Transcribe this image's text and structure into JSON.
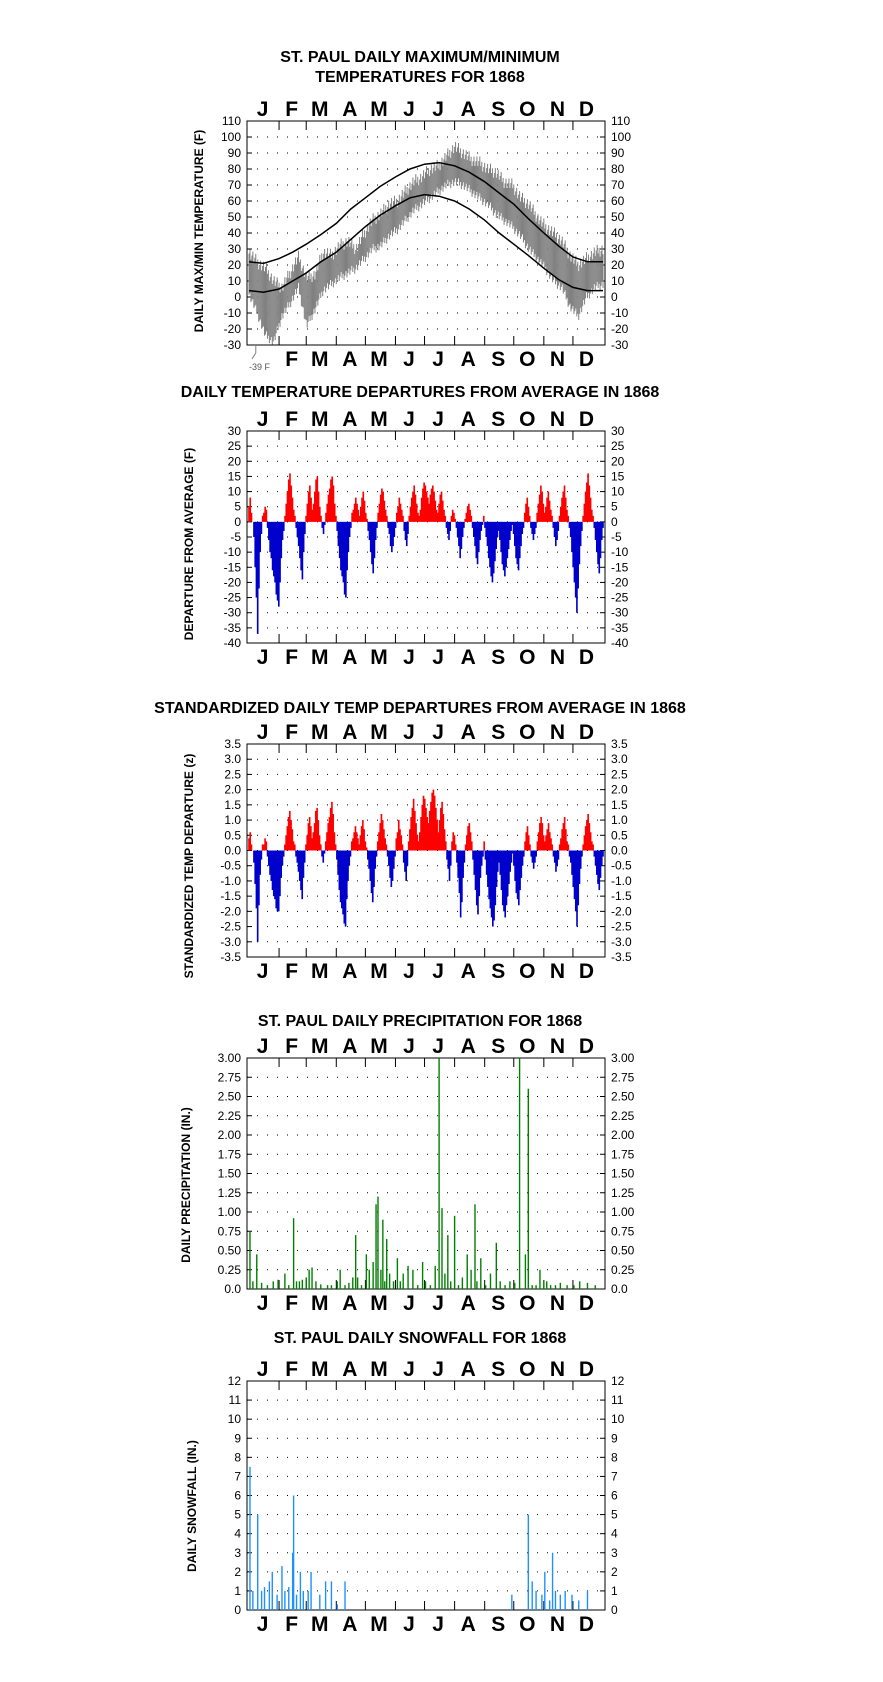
{
  "page": {
    "background": "#ffffff"
  },
  "colors": {
    "temp_series": "#808080",
    "normal_lines": "#000000",
    "positive": "#ff0000",
    "negative": "#0000cc",
    "precip": "#008000",
    "snow": "#1e90ff",
    "grid_dots": "#000000"
  },
  "chart_data": [
    {
      "id": "temps",
      "type": "line",
      "title": [
        "ST. PAUL DAILY MAXIMUM/MINIMUM",
        "TEMPERATURES FOR 1868"
      ],
      "ylabel": "DAILY MAX/MIN TEMPERATURE (F)",
      "months_top": [
        "J",
        "F",
        "M",
        "A",
        "M",
        "J",
        "J",
        "A",
        "S",
        "O",
        "N",
        "D"
      ],
      "months_bottom": [
        "",
        "F",
        "M",
        "A",
        "M",
        "J",
        "J",
        "A",
        "S",
        "O",
        "N",
        "D"
      ],
      "ylim": [
        -30,
        110
      ],
      "yticks": [
        110,
        100,
        90,
        80,
        70,
        60,
        50,
        40,
        30,
        20,
        10,
        0,
        -10,
        -20,
        -30
      ],
      "annotation": "-39 F",
      "annotation_value": -39,
      "x_day_points": [
        1,
        16,
        32,
        46,
        60,
        75,
        91,
        106,
        121,
        136,
        152,
        167,
        182,
        197,
        213,
        228,
        244,
        259,
        274,
        289,
        305,
        320,
        335,
        350,
        366
      ],
      "normal_high": [
        22,
        21,
        24,
        28,
        33,
        39,
        46,
        55,
        62,
        69,
        75,
        80,
        83,
        84,
        82,
        78,
        72,
        65,
        58,
        49,
        40,
        32,
        25,
        22,
        22
      ],
      "normal_low": [
        4,
        3,
        5,
        10,
        15,
        22,
        28,
        36,
        44,
        51,
        57,
        62,
        64,
        63,
        60,
        55,
        48,
        40,
        33,
        26,
        18,
        11,
        6,
        4,
        4
      ],
      "daily_high": [
        28,
        22,
        18,
        10,
        6,
        15,
        25,
        12,
        14,
        28,
        26,
        32,
        35,
        30,
        40,
        48,
        52,
        58,
        60,
        66,
        72,
        75,
        80,
        82,
        88,
        94,
        90,
        86,
        84,
        80,
        78,
        72,
        70,
        62,
        58,
        50,
        44,
        40,
        35,
        26,
        20,
        24,
        28,
        30
      ],
      "daily_low": [
        2,
        -10,
        -24,
        -28,
        -12,
        -4,
        6,
        -18,
        -8,
        4,
        8,
        12,
        15,
        18,
        24,
        30,
        32,
        38,
        42,
        48,
        54,
        58,
        62,
        66,
        70,
        72,
        70,
        66,
        62,
        58,
        52,
        48,
        44,
        38,
        30,
        24,
        18,
        10,
        6,
        -6,
        -12,
        0,
        6,
        8
      ]
    },
    {
      "id": "departures",
      "type": "bar",
      "title": "DAILY TEMPERATURE DEPARTURES FROM AVERAGE IN 1868",
      "ylabel": "DEPARTURE FROM AVERAGE (F)",
      "months": [
        "J",
        "F",
        "M",
        "A",
        "M",
        "J",
        "J",
        "A",
        "S",
        "O",
        "N",
        "D"
      ],
      "ylim": [
        -40,
        30
      ],
      "yticks": [
        30,
        25,
        20,
        15,
        10,
        5,
        0,
        -5,
        -10,
        -15,
        -20,
        -25,
        -30,
        -35,
        -40
      ],
      "daily": [
        5,
        8,
        3,
        0,
        -5,
        -15,
        -25,
        -37,
        -22,
        -10,
        -4,
        2,
        3,
        5,
        4,
        -2,
        -6,
        -10,
        -12,
        -16,
        -18,
        -20,
        -24,
        -26,
        -28,
        -20,
        -12,
        -6,
        -3,
        2,
        6,
        10,
        14,
        16,
        12,
        8,
        4,
        2,
        -2,
        -5,
        -8,
        -12,
        -16,
        -19,
        -10,
        -4,
        2,
        6,
        10,
        12,
        8,
        4,
        6,
        10,
        14,
        15,
        10,
        5,
        2,
        -2,
        -4,
        -1,
        3,
        6,
        9,
        11,
        14,
        15,
        12,
        6,
        2,
        -3,
        -8,
        -12,
        -16,
        -18,
        -20,
        -24,
        -25,
        -16,
        -10,
        -5,
        -2,
        3,
        4,
        6,
        8,
        6,
        4,
        2,
        5,
        8,
        10,
        7,
        3,
        1,
        -3,
        -6,
        -10,
        -14,
        -17,
        -12,
        -6,
        -2,
        3,
        6,
        9,
        11,
        10,
        7,
        4,
        2,
        -2,
        -4,
        -8,
        -10,
        -8,
        -5,
        -2,
        3,
        5,
        8,
        6,
        4,
        2,
        -3,
        -6,
        -8,
        -4,
        2,
        5,
        8,
        10,
        12,
        9,
        6,
        3,
        2,
        4,
        8,
        11,
        13,
        12,
        10,
        8,
        6,
        9,
        11,
        12,
        10,
        7,
        4,
        3,
        6,
        9,
        10,
        7,
        4,
        2,
        -2,
        -4,
        -6,
        -3,
        2,
        4,
        3,
        1,
        -2,
        -5,
        -8,
        -12,
        -9,
        -5,
        -2,
        1,
        3,
        5,
        6,
        4,
        2,
        -2,
        -5,
        -8,
        -12,
        -14,
        -10,
        -6,
        -3,
        -1,
        2,
        -2,
        -5,
        -8,
        -12,
        -15,
        -18,
        -20,
        -17,
        -13,
        -9,
        -5,
        -3,
        -6,
        -10,
        -14,
        -16,
        -18,
        -15,
        -12,
        -9,
        -6,
        -3,
        -1,
        -4,
        -8,
        -12,
        -14,
        -16,
        -12,
        -8,
        -4,
        -2,
        3,
        6,
        8,
        5,
        2,
        -2,
        -4,
        -6,
        -4,
        -2,
        3,
        6,
        9,
        12,
        10,
        6,
        3,
        5,
        8,
        10,
        7,
        4,
        2,
        -2,
        -5,
        -8,
        -6,
        -3,
        2,
        5,
        8,
        10,
        12,
        8,
        4,
        2,
        -2,
        -5,
        -10,
        -15,
        -20,
        -25,
        -30,
        -22,
        -14,
        -8,
        -3,
        2,
        6,
        10,
        13,
        16,
        12,
        8,
        4,
        2,
        -2,
        -6,
        -10,
        -14,
        -17,
        -12,
        -6,
        -2
      ]
    },
    {
      "id": "standardized",
      "type": "bar",
      "title": "STANDARDIZED DAILY TEMP DEPARTURES FROM AVERAGE IN 1868",
      "ylabel": "STANDARDIZED TEMP DEPARTURE (z)",
      "months": [
        "J",
        "F",
        "M",
        "A",
        "M",
        "J",
        "J",
        "A",
        "S",
        "O",
        "N",
        "D"
      ],
      "ylim": [
        -3.5,
        3.5
      ],
      "yticks": [
        "3.5",
        "3.0",
        "2.5",
        "2.0",
        "1.5",
        "1.0",
        "0.5",
        "0.0",
        "-0.5",
        "-1.0",
        "-1.5",
        "-2.0",
        "-2.5",
        "-3.0",
        "-3.5"
      ],
      "daily": [
        0.4,
        0.6,
        0.2,
        0,
        -0.4,
        -1.1,
        -1.9,
        -3.0,
        -1.8,
        -0.8,
        -0.3,
        0.2,
        0.2,
        0.4,
        0.3,
        -0.2,
        -0.5,
        -0.8,
        -1.0,
        -1.3,
        -1.5,
        -1.6,
        -1.9,
        -2.0,
        -2.0,
        -1.5,
        -0.9,
        -0.5,
        -0.2,
        0.2,
        0.5,
        0.8,
        1.1,
        1.3,
        1.0,
        0.7,
        0.3,
        0.2,
        -0.2,
        -0.4,
        -0.7,
        -1.0,
        -1.3,
        -1.6,
        -0.9,
        -0.4,
        0.2,
        0.5,
        0.9,
        1.1,
        0.8,
        0.4,
        0.6,
        0.9,
        1.3,
        1.4,
        1.0,
        0.5,
        0.2,
        -0.2,
        -0.4,
        -0.1,
        0.3,
        0.6,
        0.9,
        1.1,
        1.4,
        1.6,
        1.2,
        0.6,
        0.2,
        -0.3,
        -0.8,
        -1.3,
        -1.7,
        -1.9,
        -2.1,
        -2.4,
        -2.5,
        -1.6,
        -1.0,
        -0.5,
        -0.2,
        0.3,
        0.4,
        0.6,
        0.8,
        0.6,
        0.4,
        0.2,
        0.5,
        0.8,
        1.0,
        0.7,
        0.3,
        0.1,
        -0.3,
        -0.6,
        -1.0,
        -1.4,
        -1.7,
        -1.2,
        -0.6,
        -0.2,
        0.3,
        0.6,
        0.9,
        1.2,
        1.0,
        0.7,
        0.4,
        0.2,
        -0.2,
        -0.5,
        -0.9,
        -1.2,
        -1.0,
        -0.6,
        -0.2,
        0.4,
        0.6,
        1.0,
        0.7,
        0.5,
        0.2,
        -0.4,
        -0.7,
        -1.0,
        -0.5,
        0.3,
        0.7,
        1.1,
        1.4,
        1.7,
        1.3,
        0.9,
        0.5,
        0.3,
        0.6,
        1.1,
        1.5,
        1.8,
        1.7,
        1.4,
        1.1,
        0.9,
        1.3,
        1.6,
        1.9,
        2.0,
        1.8,
        1.4,
        1.0,
        0.6,
        1.0,
        1.4,
        1.6,
        1.2,
        0.7,
        0.3,
        -0.3,
        -0.6,
        -1.0,
        -0.5,
        0.3,
        0.6,
        0.5,
        0.2,
        -0.4,
        -0.9,
        -1.4,
        -2.2,
        -1.7,
        -0.9,
        -0.4,
        0.2,
        0.5,
        0.8,
        0.9,
        0.6,
        0.3,
        -0.3,
        -0.8,
        -1.3,
        -1.8,
        -2.1,
        -1.5,
        -0.9,
        -0.5,
        -0.2,
        0.3,
        -0.3,
        -0.8,
        -1.2,
        -1.6,
        -1.9,
        -2.2,
        -2.5,
        -2.3,
        -1.8,
        -1.2,
        -0.7,
        -0.4,
        -0.8,
        -1.3,
        -1.8,
        -2.0,
        -2.2,
        -1.8,
        -1.5,
        -1.1,
        -0.7,
        -0.4,
        -0.1,
        -0.5,
        -1.0,
        -1.4,
        -1.6,
        -1.8,
        -1.3,
        -0.9,
        -0.5,
        -0.2,
        0.3,
        0.6,
        0.8,
        0.5,
        0.2,
        -0.2,
        -0.4,
        -0.6,
        -0.4,
        -0.2,
        0.3,
        0.6,
        0.9,
        1.1,
        0.9,
        0.5,
        0.3,
        0.5,
        0.7,
        0.9,
        0.6,
        0.4,
        0.2,
        -0.2,
        -0.4,
        -0.7,
        -0.5,
        -0.3,
        0.2,
        0.4,
        0.7,
        0.9,
        1.1,
        0.7,
        0.3,
        0.2,
        -0.2,
        -0.4,
        -0.8,
        -1.2,
        -1.6,
        -2.0,
        -2.5,
        -1.8,
        -1.1,
        -0.6,
        -0.2,
        0.2,
        0.5,
        0.8,
        1.0,
        1.2,
        0.9,
        0.6,
        0.3,
        0.2,
        -0.2,
        -0.5,
        -0.8,
        -1.1,
        -1.3,
        -0.9,
        -0.5,
        -0.2
      ]
    },
    {
      "id": "precip",
      "type": "bar",
      "title": "ST. PAUL DAILY PRECIPITATION FOR 1868",
      "ylabel": "DAILY PRECIPITATION (IN.)",
      "months": [
        "J",
        "F",
        "M",
        "A",
        "M",
        "J",
        "J",
        "A",
        "S",
        "O",
        "N",
        "D"
      ],
      "ylim": [
        0,
        3
      ],
      "yticks": [
        "3.00",
        "2.75",
        "2.50",
        "2.25",
        "2.00",
        "1.75",
        "1.50",
        "1.25",
        "1.00",
        "0.75",
        "0.50",
        "0.25",
        "0.0"
      ],
      "events": [
        [
          2,
          0.75
        ],
        [
          5,
          0.1
        ],
        [
          9,
          0.45
        ],
        [
          14,
          0.08
        ],
        [
          20,
          0.05
        ],
        [
          26,
          0.1
        ],
        [
          31,
          0.12
        ],
        [
          38,
          0.2
        ],
        [
          42,
          0.05
        ],
        [
          47,
          0.92
        ],
        [
          50,
          0.1
        ],
        [
          53,
          0.1
        ],
        [
          56,
          0.12
        ],
        [
          60,
          0.15
        ],
        [
          63,
          0.25
        ],
        [
          66,
          0.28
        ],
        [
          70,
          0.1
        ],
        [
          75,
          0.06
        ],
        [
          82,
          0.05
        ],
        [
          86,
          0.05
        ],
        [
          92,
          0.1
        ],
        [
          95,
          0.25
        ],
        [
          100,
          0.05
        ],
        [
          104,
          0.08
        ],
        [
          108,
          0.15
        ],
        [
          111,
          0.7
        ],
        [
          113,
          0.15
        ],
        [
          117,
          0.05
        ],
        [
          122,
          0.45
        ],
        [
          125,
          0.25
        ],
        [
          129,
          0.35
        ],
        [
          132,
          1.1
        ],
        [
          134,
          1.2
        ],
        [
          137,
          0.25
        ],
        [
          139,
          0.9
        ],
        [
          141,
          0.1
        ],
        [
          143,
          0.65
        ],
        [
          146,
          0.2
        ],
        [
          150,
          0.1
        ],
        [
          154,
          0.4
        ],
        [
          157,
          0.1
        ],
        [
          160,
          0.2
        ],
        [
          165,
          0.3
        ],
        [
          170,
          0.25
        ],
        [
          175,
          0.05
        ],
        [
          180,
          0.35
        ],
        [
          183,
          0.1
        ],
        [
          188,
          0.05
        ],
        [
          193,
          0.3
        ],
        [
          197,
          3.0
        ],
        [
          200,
          1.05
        ],
        [
          203,
          0.2
        ],
        [
          206,
          0.7
        ],
        [
          209,
          0.1
        ],
        [
          213,
          0.95
        ],
        [
          217,
          0.05
        ],
        [
          221,
          0.15
        ],
        [
          226,
          0.45
        ],
        [
          230,
          0.25
        ],
        [
          234,
          1.1
        ],
        [
          236,
          0.1
        ],
        [
          240,
          0.4
        ],
        [
          245,
          0.05
        ],
        [
          250,
          0.2
        ],
        [
          256,
          0.6
        ],
        [
          260,
          0.1
        ],
        [
          265,
          0.05
        ],
        [
          270,
          0.1
        ],
        [
          275,
          0.08
        ],
        [
          280,
          3.0
        ],
        [
          286,
          0.45
        ],
        [
          289,
          2.6
        ],
        [
          293,
          0.05
        ],
        [
          297,
          0.05
        ],
        [
          301,
          0.25
        ],
        [
          305,
          0.1
        ],
        [
          308,
          0.1
        ],
        [
          312,
          0.05
        ],
        [
          317,
          0.05
        ],
        [
          322,
          0.08
        ],
        [
          329,
          0.05
        ],
        [
          336,
          0.05
        ],
        [
          342,
          0.1
        ],
        [
          350,
          0.08
        ],
        [
          358,
          0.05
        ]
      ]
    },
    {
      "id": "snow",
      "type": "bar",
      "title": "ST. PAUL DAILY SNOWFALL FOR 1868",
      "ylabel": "DAILY SNOWFALL (IN.)",
      "months": [
        "J",
        "F",
        "M",
        "A",
        "M",
        "J",
        "J",
        "A",
        "S",
        "O",
        "N",
        "D"
      ],
      "ylim": [
        0,
        12
      ],
      "yticks": [
        "12",
        "11",
        "10",
        "9",
        "8",
        "7",
        "6",
        "5",
        "4",
        "3",
        "2",
        "1",
        "0"
      ],
      "events": [
        [
          2,
          7.5
        ],
        [
          5,
          1
        ],
        [
          10,
          5
        ],
        [
          14,
          1
        ],
        [
          17,
          1.2
        ],
        [
          22,
          1.5
        ],
        [
          25,
          2
        ],
        [
          30,
          0.8
        ],
        [
          35,
          2.3
        ],
        [
          38,
          1
        ],
        [
          42,
          1.2
        ],
        [
          46,
          3
        ],
        [
          47,
          6
        ],
        [
          50,
          0.8
        ],
        [
          54,
          2
        ],
        [
          57,
          1
        ],
        [
          62,
          1
        ],
        [
          65,
          2
        ],
        [
          74,
          0.8
        ],
        [
          80,
          1.5
        ],
        [
          86,
          1.5
        ],
        [
          92,
          0.3
        ],
        [
          100,
          1.5
        ],
        [
          272,
          0.8
        ],
        [
          289,
          5
        ],
        [
          293,
          1.5
        ],
        [
          297,
          1
        ],
        [
          303,
          0.8
        ],
        [
          306,
          2
        ],
        [
          311,
          0.5
        ],
        [
          314,
          3
        ],
        [
          317,
          1
        ],
        [
          322,
          0.8
        ],
        [
          327,
          1
        ],
        [
          334,
          0.8
        ],
        [
          341,
          0.5
        ],
        [
          350,
          1
        ]
      ]
    }
  ]
}
